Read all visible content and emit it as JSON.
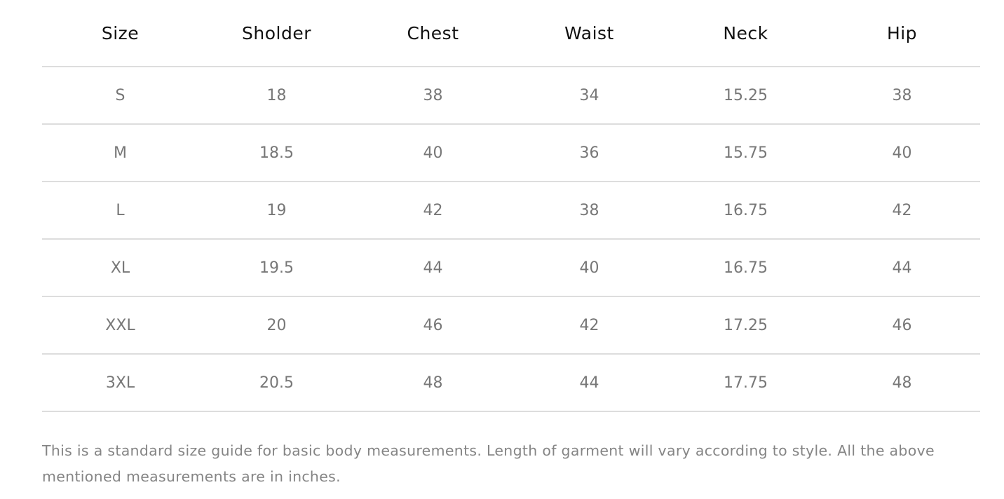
{
  "table": {
    "headers": [
      "Size",
      "Sholder",
      "Chest",
      "Waist",
      "Neck",
      "Hip"
    ],
    "rows": [
      [
        "S",
        "18",
        "38",
        "34",
        "15.25",
        "38"
      ],
      [
        "M",
        "18.5",
        "40",
        "36",
        "15.75",
        "40"
      ],
      [
        "L",
        "19",
        "42",
        "38",
        "16.75",
        "42"
      ],
      [
        "XL",
        "19.5",
        "44",
        "40",
        "16.75",
        "44"
      ],
      [
        "XXL",
        "20",
        "46",
        "42",
        "17.25",
        "46"
      ],
      [
        "3XL",
        "20.5",
        "48",
        "44",
        "17.75",
        "48"
      ]
    ]
  },
  "note": "This is a standard size guide for basic body measurements. Length of garment will vary according to style. All the above mentioned measurements are in inches."
}
